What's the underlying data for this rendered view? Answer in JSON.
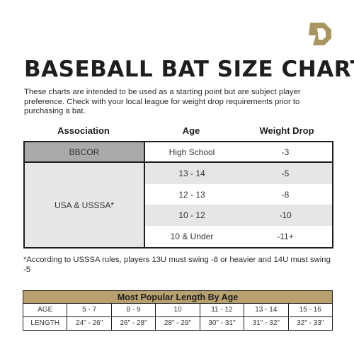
{
  "title": "BASEBALL BAT SIZE CHART",
  "intro": "These charts are intended to be used as a starting point but are subject player preference. Check with your local league for weight drop requirements prior to purchasing a bat.",
  "columns": {
    "association": "Association",
    "age": "Age",
    "weight_drop": "Weight Drop"
  },
  "bbcor": {
    "association": "BBCOR",
    "age": "High School",
    "drop": "-3"
  },
  "usa": {
    "association": "USA & USSSA*",
    "rows": [
      {
        "age": "13 - 14",
        "drop": "-5"
      },
      {
        "age": "12 - 13",
        "drop": "-8"
      },
      {
        "age": "10 - 12",
        "drop": "-10"
      },
      {
        "age": "10 & Under",
        "drop": "-11+"
      }
    ]
  },
  "footnote": "*According to USSSA rules, players 13U must swing -8 or heavier and 14U must swing -5",
  "length_table": {
    "title": "Most Popular Length By Age",
    "age_label": "AGE",
    "length_label": "LENGTH",
    "ages": [
      "5 - 7",
      "8 - 9",
      "10",
      "11 - 12",
      "13 - 14",
      "15 - 16"
    ],
    "lengths": [
      "24\" - 26\"",
      "26\" - 28\"",
      "28\" - 29\"",
      "30\" - 31\"",
      "31\" - 32\"",
      "32\" - 33\""
    ]
  },
  "colors": {
    "accent": "#b8a16e",
    "header_gray": "#a9a9a9",
    "row_gray": "#e6e6e6"
  },
  "logo_icon": "demarini-d-logo-icon"
}
